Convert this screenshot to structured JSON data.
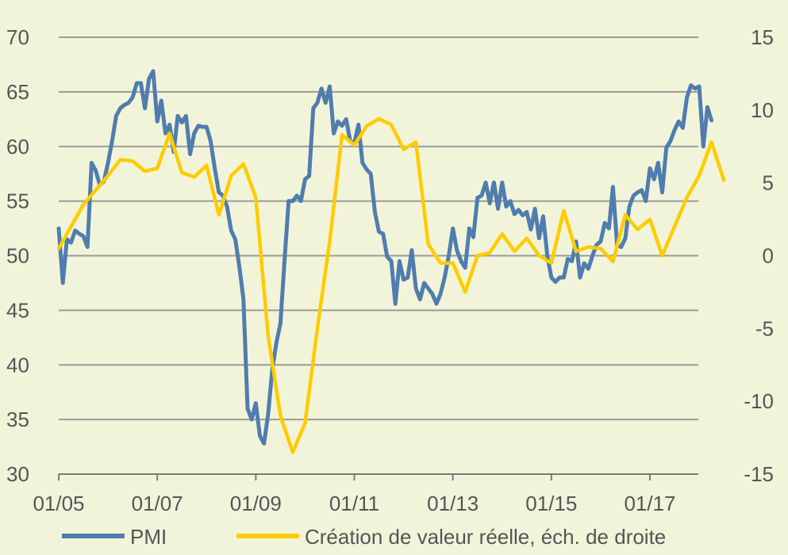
{
  "chart_data": {
    "type": "line",
    "xlabel": "",
    "ylabel_left": "",
    "ylabel_right": "",
    "x_ticks": [
      "01/05",
      "01/07",
      "01/09",
      "01/11",
      "01/13",
      "01/15",
      "01/17"
    ],
    "x_tick_months": [
      0,
      24,
      48,
      72,
      96,
      120,
      144
    ],
    "x_range": [
      0,
      159
    ],
    "y_left_ticks": [
      "70",
      "65",
      "60",
      "55",
      "50",
      "45",
      "40",
      "35",
      "30"
    ],
    "y_left_range": [
      30,
      70
    ],
    "y_right_ticks": [
      "15",
      "10",
      "5",
      "0",
      "-5",
      "-10",
      "-15"
    ],
    "y_right_range": [
      -15,
      15
    ],
    "grid": "horizontal",
    "legend_position": "bottom",
    "series": [
      {
        "name": "PMI",
        "axis": "left",
        "color": "#4f7dae",
        "x_unit": "months since 01/2005",
        "points": [
          [
            0,
            52.5
          ],
          [
            1,
            47.5
          ],
          [
            2,
            51.5
          ],
          [
            3,
            51.2
          ],
          [
            4,
            52.3
          ],
          [
            5,
            52.0
          ],
          [
            6,
            51.8
          ],
          [
            7,
            50.8
          ],
          [
            8,
            58.5
          ],
          [
            9,
            57.8
          ],
          [
            10,
            56.5
          ],
          [
            11,
            56.8
          ],
          [
            12,
            58.5
          ],
          [
            13,
            60.5
          ],
          [
            14,
            62.8
          ],
          [
            15,
            63.5
          ],
          [
            16,
            63.8
          ],
          [
            17,
            64.0
          ],
          [
            18,
            64.5
          ],
          [
            19,
            65.8
          ],
          [
            20,
            65.8
          ],
          [
            21,
            63.5
          ],
          [
            22,
            66.2
          ],
          [
            23,
            66.9
          ],
          [
            24,
            62.3
          ],
          [
            25,
            64.2
          ],
          [
            26,
            61.2
          ],
          [
            27,
            62.0
          ],
          [
            28,
            59.5
          ],
          [
            29,
            62.8
          ],
          [
            30,
            62.2
          ],
          [
            31,
            62.8
          ],
          [
            32,
            59.3
          ],
          [
            33,
            61.2
          ],
          [
            34,
            61.9
          ],
          [
            35,
            61.8
          ],
          [
            36,
            61.8
          ],
          [
            37,
            60.5
          ],
          [
            38,
            58.0
          ],
          [
            39,
            55.8
          ],
          [
            40,
            55.5
          ],
          [
            41,
            54.5
          ],
          [
            42,
            52.3
          ],
          [
            43,
            51.5
          ],
          [
            44,
            49.0
          ],
          [
            45,
            46.0
          ],
          [
            46,
            36.0
          ],
          [
            47,
            35.0
          ],
          [
            48,
            36.5
          ],
          [
            49,
            33.5
          ],
          [
            50,
            32.8
          ],
          [
            51,
            35.5
          ],
          [
            52,
            39.5
          ],
          [
            53,
            42.0
          ],
          [
            54,
            43.8
          ],
          [
            55,
            49.5
          ],
          [
            56,
            55.0
          ],
          [
            57,
            55.0
          ],
          [
            58,
            55.5
          ],
          [
            59,
            55.0
          ],
          [
            60,
            57.0
          ],
          [
            61,
            57.3
          ],
          [
            62,
            63.5
          ],
          [
            63,
            64.0
          ],
          [
            64,
            65.3
          ],
          [
            65,
            64.0
          ],
          [
            66,
            65.5
          ],
          [
            67,
            61.2
          ],
          [
            68,
            62.3
          ],
          [
            69,
            61.9
          ],
          [
            70,
            62.5
          ],
          [
            71,
            60.5
          ],
          [
            72,
            60.3
          ],
          [
            73,
            62.0
          ],
          [
            74,
            58.5
          ],
          [
            75,
            57.9
          ],
          [
            76,
            57.5
          ],
          [
            77,
            54.0
          ],
          [
            78,
            52.2
          ],
          [
            79,
            52.0
          ],
          [
            80,
            49.9
          ],
          [
            81,
            49.5
          ],
          [
            82,
            45.6
          ],
          [
            83,
            49.5
          ],
          [
            84,
            47.8
          ],
          [
            85,
            48.0
          ],
          [
            86,
            50.5
          ],
          [
            87,
            47.0
          ],
          [
            88,
            46.0
          ],
          [
            89,
            47.5
          ],
          [
            90,
            47.0
          ],
          [
            91,
            46.5
          ],
          [
            92,
            45.6
          ],
          [
            93,
            46.5
          ],
          [
            94,
            48.0
          ],
          [
            95,
            50.0
          ],
          [
            96,
            52.5
          ],
          [
            97,
            50.5
          ],
          [
            98,
            49.5
          ],
          [
            99,
            48.9
          ],
          [
            100,
            52.5
          ],
          [
            101,
            51.7
          ],
          [
            102,
            55.3
          ],
          [
            103,
            55.5
          ],
          [
            104,
            56.7
          ],
          [
            105,
            54.8
          ],
          [
            106,
            56.7
          ],
          [
            107,
            54.3
          ],
          [
            108,
            56.7
          ],
          [
            109,
            54.5
          ],
          [
            110,
            55.0
          ],
          [
            111,
            53.8
          ],
          [
            112,
            54.2
          ],
          [
            113,
            53.7
          ],
          [
            114,
            54.0
          ],
          [
            115,
            52.4
          ],
          [
            116,
            54.3
          ],
          [
            117,
            51.6
          ],
          [
            118,
            53.6
          ],
          [
            119,
            50.0
          ],
          [
            120,
            48.0
          ],
          [
            121,
            47.6
          ],
          [
            122,
            48.0
          ],
          [
            123,
            48.0
          ],
          [
            124,
            49.7
          ],
          [
            125,
            49.5
          ],
          [
            126,
            51.3
          ],
          [
            127,
            48.0
          ],
          [
            128,
            49.3
          ],
          [
            129,
            48.8
          ],
          [
            130,
            50.0
          ],
          [
            131,
            51.0
          ],
          [
            132,
            51.3
          ],
          [
            133,
            53.0
          ],
          [
            134,
            52.5
          ],
          [
            135,
            56.3
          ],
          [
            136,
            51.0
          ],
          [
            137,
            50.8
          ],
          [
            138,
            51.6
          ],
          [
            139,
            54.5
          ],
          [
            140,
            55.5
          ],
          [
            141,
            55.8
          ],
          [
            142,
            56.0
          ],
          [
            143,
            55.0
          ],
          [
            144,
            58.0
          ],
          [
            145,
            57.0
          ],
          [
            146,
            58.5
          ],
          [
            147,
            55.8
          ],
          [
            148,
            59.9
          ],
          [
            149,
            60.5
          ],
          [
            150,
            61.5
          ],
          [
            151,
            62.3
          ],
          [
            152,
            61.7
          ],
          [
            153,
            64.5
          ],
          [
            154,
            65.6
          ],
          [
            155,
            65.3
          ],
          [
            156,
            65.5
          ],
          [
            157,
            60.0
          ],
          [
            158,
            63.6
          ],
          [
            159,
            62.4
          ]
        ]
      },
      {
        "name": "Création de valeur réelle, éch. de droite",
        "axis": "right",
        "color": "#ffcc00",
        "x_unit": "months since 01/2005",
        "points": [
          [
            0,
            0.5
          ],
          [
            6,
            3.5
          ],
          [
            12,
            5.5
          ],
          [
            15,
            6.6
          ],
          [
            18,
            6.5
          ],
          [
            21,
            5.8
          ],
          [
            24,
            6.0
          ],
          [
            27,
            8.4
          ],
          [
            30,
            5.7
          ],
          [
            33,
            5.4
          ],
          [
            36,
            6.2
          ],
          [
            39,
            2.8
          ],
          [
            42,
            5.5
          ],
          [
            45,
            6.3
          ],
          [
            48,
            4.0
          ],
          [
            51,
            -5.5
          ],
          [
            54,
            -11.0
          ],
          [
            57,
            -13.5
          ],
          [
            60,
            -11.5
          ],
          [
            63,
            -5.0
          ],
          [
            66,
            1.0
          ],
          [
            69,
            8.3
          ],
          [
            72,
            7.6
          ],
          [
            75,
            8.9
          ],
          [
            78,
            9.4
          ],
          [
            81,
            9.0
          ],
          [
            84,
            7.3
          ],
          [
            87,
            7.8
          ],
          [
            90,
            0.8
          ],
          [
            93,
            -0.5
          ],
          [
            96,
            -0.5
          ],
          [
            99,
            -2.5
          ],
          [
            102,
            0.0
          ],
          [
            105,
            0.2
          ],
          [
            108,
            1.5
          ],
          [
            111,
            0.3
          ],
          [
            114,
            1.2
          ],
          [
            117,
            0.0
          ],
          [
            120,
            -0.5
          ],
          [
            123,
            3.1
          ],
          [
            126,
            0.3
          ],
          [
            129,
            0.6
          ],
          [
            132,
            0.5
          ],
          [
            135,
            -0.4
          ],
          [
            138,
            2.8
          ],
          [
            141,
            1.8
          ],
          [
            144,
            2.5
          ],
          [
            147,
            0.0
          ],
          [
            150,
            2.0
          ],
          [
            153,
            4.0
          ],
          [
            156,
            5.5
          ],
          [
            159,
            7.8
          ],
          [
            162,
            5.2
          ]
        ]
      }
    ]
  },
  "legend": {
    "pmi_label": "PMI",
    "value_label": "Création de valeur réelle, éch. de droite"
  }
}
